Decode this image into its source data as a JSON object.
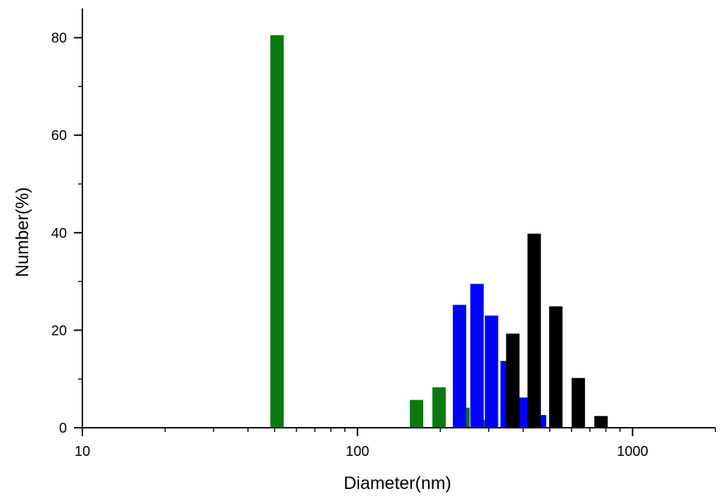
{
  "chart_data": {
    "type": "bar",
    "xlabel": "Diameter(nm)",
    "ylabel": "Number(%)",
    "x_scale": "log",
    "xlim": [
      10,
      2000
    ],
    "ylim": [
      0,
      86
    ],
    "x_ticks": [
      10,
      100,
      1000
    ],
    "x_tick_labels": [
      "10",
      "100",
      "1000"
    ],
    "y_ticks": [
      0,
      20,
      40,
      60,
      80
    ],
    "y_tick_labels": [
      "0",
      "20",
      "40",
      "60",
      "80"
    ],
    "grid": false,
    "legend": "none",
    "series": [
      {
        "color": "#0a7a10",
        "points": [
          {
            "x": 51,
            "y": 80.5
          },
          {
            "x": 164,
            "y": 5.7
          },
          {
            "x": 198,
            "y": 8.3
          },
          {
            "x": 242,
            "y": 4.1
          },
          {
            "x": 295,
            "y": 1.6
          }
        ]
      },
      {
        "color": "#0000ff",
        "points": [
          {
            "x": 235,
            "y": 25.2
          },
          {
            "x": 272,
            "y": 29.5
          },
          {
            "x": 307,
            "y": 23.0
          },
          {
            "x": 350,
            "y": 13.7
          },
          {
            "x": 405,
            "y": 6.2
          },
          {
            "x": 459,
            "y": 2.6
          }
        ]
      },
      {
        "color": "#000000",
        "points": [
          {
            "x": 367,
            "y": 19.3
          },
          {
            "x": 439,
            "y": 39.8
          },
          {
            "x": 526,
            "y": 24.9
          },
          {
            "x": 635,
            "y": 10.2
          },
          {
            "x": 768,
            "y": 2.4
          }
        ]
      }
    ]
  }
}
